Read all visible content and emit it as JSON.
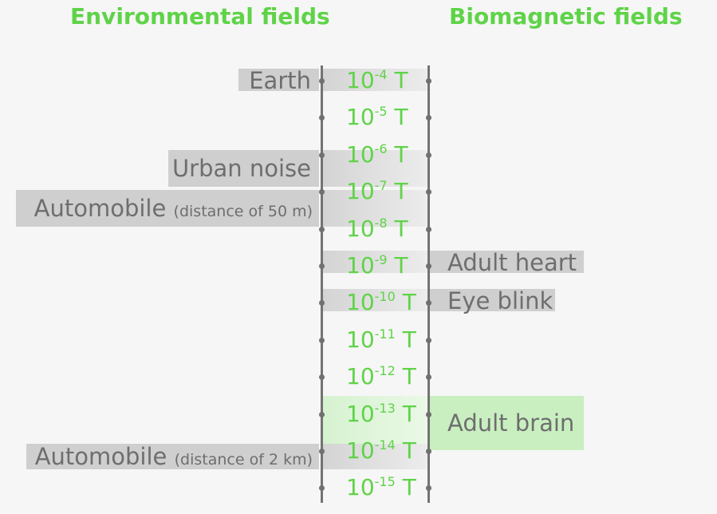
{
  "headings": {
    "environmental": "Environmental fields",
    "biomagnetic": "Biomagnetic fields"
  },
  "scale": [
    {
      "base": "10",
      "exp": "-4",
      "unit": "T"
    },
    {
      "base": "10",
      "exp": "-5",
      "unit": "T"
    },
    {
      "base": "10",
      "exp": "-6",
      "unit": "T"
    },
    {
      "base": "10",
      "exp": "-7",
      "unit": "T"
    },
    {
      "base": "10",
      "exp": "-8",
      "unit": "T"
    },
    {
      "base": "10",
      "exp": "-9",
      "unit": "T"
    },
    {
      "base": "10",
      "exp": "-10",
      "unit": "T"
    },
    {
      "base": "10",
      "exp": "-11",
      "unit": "T"
    },
    {
      "base": "10",
      "exp": "-12",
      "unit": "T"
    },
    {
      "base": "10",
      "exp": "-13",
      "unit": "T"
    },
    {
      "base": "10",
      "exp": "-14",
      "unit": "T"
    },
    {
      "base": "10",
      "exp": "-15",
      "unit": "T"
    }
  ],
  "environmental": [
    {
      "label": "Earth",
      "note": ""
    },
    {
      "label": "Urban noise",
      "note": ""
    },
    {
      "label": "Automobile",
      "note": "(distance of 50 m)"
    },
    {
      "label": "Automobile",
      "note": "(distance of 2 km)"
    }
  ],
  "biomagnetic": [
    {
      "label": "Adult heart"
    },
    {
      "label": "Eye blink"
    },
    {
      "label": "Adult brain"
    }
  ],
  "colors": {
    "accent": "#5fd348",
    "label_box": "#cfcfcf",
    "highlight_box": "#c9efc1",
    "axis": "#737373",
    "text": "#6e6e6e"
  }
}
